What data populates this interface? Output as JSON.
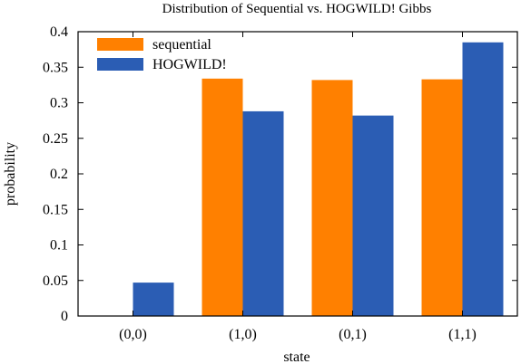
{
  "chart_data": {
    "type": "bar",
    "title": "Distribution of Sequential vs. HOGWILD! Gibbs",
    "xlabel": "state",
    "ylabel": "probability",
    "categories": [
      "(0,0)",
      "(1,0)",
      "(0,1)",
      "(1,1)"
    ],
    "ylim": [
      0,
      0.4
    ],
    "yticks": [
      0,
      0.05,
      0.1,
      0.15,
      0.2,
      0.25,
      0.3,
      0.35,
      0.4
    ],
    "ytick_labels": [
      "0",
      "0.05",
      "0.1",
      "0.15",
      "0.2",
      "0.25",
      "0.3",
      "0.35",
      "0.4"
    ],
    "grid": false,
    "legend_position": "top-left",
    "series": [
      {
        "name": "sequential",
        "color": "#ff8000",
        "values": [
          0,
          0.334,
          0.332,
          0.333
        ]
      },
      {
        "name": "HOGWILD!",
        "color": "#2b5db4",
        "values": [
          0.047,
          0.288,
          0.282,
          0.385
        ]
      }
    ]
  }
}
